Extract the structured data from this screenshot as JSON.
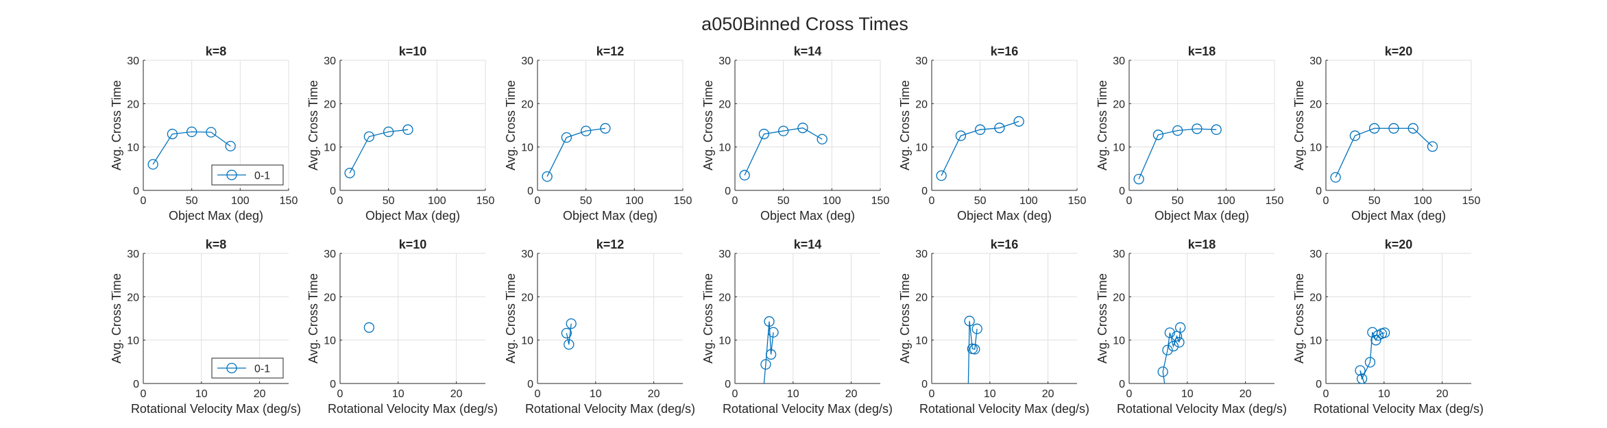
{
  "figure_title": "a050Binned Cross Times",
  "colors": {
    "series": "#0072BD",
    "grid": "#dfdfdf",
    "axis": "#262626",
    "background": "#ffffff"
  },
  "chart_data": [
    {
      "type": "line",
      "title": "k=8",
      "xlabel": "Object Max (deg)",
      "ylabel": "Avg. Cross Time",
      "xlim": [
        0,
        150
      ],
      "ylim": [
        0,
        30
      ],
      "xticks": [
        0,
        50,
        100,
        150
      ],
      "yticks": [
        0,
        10,
        20,
        30
      ],
      "grid": true,
      "legend": "bottom-right",
      "series": [
        {
          "name": "0-1",
          "marker": "circle",
          "x": [
            10,
            30,
            50,
            70,
            90
          ],
          "y": [
            6.0,
            13.0,
            13.5,
            13.4,
            10.2
          ]
        }
      ]
    },
    {
      "type": "line",
      "title": "k=10",
      "xlabel": "Object Max (deg)",
      "ylabel": "Avg. Cross Time",
      "xlim": [
        0,
        150
      ],
      "ylim": [
        0,
        30
      ],
      "xticks": [
        0,
        50,
        100,
        150
      ],
      "yticks": [
        0,
        10,
        20,
        30
      ],
      "grid": true,
      "legend": "",
      "series": [
        {
          "name": "0-1",
          "marker": "circle",
          "x": [
            10,
            30,
            50,
            70
          ],
          "y": [
            4.0,
            12.4,
            13.5,
            14.0
          ]
        }
      ]
    },
    {
      "type": "line",
      "title": "k=12",
      "xlabel": "Object Max (deg)",
      "ylabel": "Avg. Cross Time",
      "xlim": [
        0,
        150
      ],
      "ylim": [
        0,
        30
      ],
      "xticks": [
        0,
        50,
        100,
        150
      ],
      "yticks": [
        0,
        10,
        20,
        30
      ],
      "grid": true,
      "legend": "",
      "series": [
        {
          "name": "0-1",
          "marker": "circle",
          "x": [
            10,
            30,
            50,
            70
          ],
          "y": [
            3.2,
            12.2,
            13.7,
            14.3
          ]
        }
      ]
    },
    {
      "type": "line",
      "title": "k=14",
      "xlabel": "Object Max (deg)",
      "ylabel": "Avg. Cross Time",
      "xlim": [
        0,
        150
      ],
      "ylim": [
        0,
        30
      ],
      "xticks": [
        0,
        50,
        100,
        150
      ],
      "yticks": [
        0,
        10,
        20,
        30
      ],
      "grid": true,
      "legend": "",
      "series": [
        {
          "name": "0-1",
          "marker": "circle",
          "x": [
            10,
            30,
            50,
            70,
            90
          ],
          "y": [
            3.5,
            13.0,
            13.7,
            14.4,
            11.8
          ]
        }
      ]
    },
    {
      "type": "line",
      "title": "k=16",
      "xlabel": "Object Max (deg)",
      "ylabel": "Avg. Cross Time",
      "xlim": [
        0,
        150
      ],
      "ylim": [
        0,
        30
      ],
      "xticks": [
        0,
        50,
        100,
        150
      ],
      "yticks": [
        0,
        10,
        20,
        30
      ],
      "grid": true,
      "legend": "",
      "series": [
        {
          "name": "0-1",
          "marker": "circle",
          "x": [
            10,
            30,
            50,
            70,
            90
          ],
          "y": [
            3.4,
            12.6,
            14.0,
            14.4,
            15.9
          ]
        }
      ]
    },
    {
      "type": "line",
      "title": "k=18",
      "xlabel": "Object Max (deg)",
      "ylabel": "Avg. Cross Time",
      "xlim": [
        0,
        150
      ],
      "ylim": [
        0,
        30
      ],
      "xticks": [
        0,
        50,
        100,
        150
      ],
      "yticks": [
        0,
        10,
        20,
        30
      ],
      "grid": true,
      "legend": "",
      "series": [
        {
          "name": "0-1",
          "marker": "circle",
          "x": [
            10,
            30,
            50,
            70,
            90
          ],
          "y": [
            2.6,
            12.8,
            13.8,
            14.2,
            14.0
          ]
        }
      ]
    },
    {
      "type": "line",
      "title": "k=20",
      "xlabel": "Object Max (deg)",
      "ylabel": "Avg. Cross Time",
      "xlim": [
        0,
        150
      ],
      "ylim": [
        0,
        30
      ],
      "xticks": [
        0,
        50,
        100,
        150
      ],
      "yticks": [
        0,
        10,
        20,
        30
      ],
      "grid": true,
      "legend": "",
      "series": [
        {
          "name": "0-1",
          "marker": "circle",
          "x": [
            10,
            30,
            50,
            70,
            90,
            110
          ],
          "y": [
            3.0,
            12.6,
            14.3,
            14.3,
            14.3,
            10.1
          ]
        }
      ]
    },
    {
      "type": "line",
      "title": "k=8",
      "xlabel": "Rotational Velocity Max (deg/s)",
      "ylabel": "Avg. Cross Time",
      "xlim": [
        0,
        25
      ],
      "ylim": [
        0,
        30
      ],
      "xticks": [
        0,
        10,
        20
      ],
      "yticks": [
        0,
        10,
        20,
        30
      ],
      "grid": true,
      "legend": "bottom-right",
      "series": [
        {
          "name": "0-1",
          "marker": "circle",
          "x": [],
          "y": []
        }
      ]
    },
    {
      "type": "line",
      "title": "k=10",
      "xlabel": "Rotational Velocity Max (deg/s)",
      "ylabel": "Avg. Cross Time",
      "xlim": [
        0,
        25
      ],
      "ylim": [
        0,
        30
      ],
      "xticks": [
        0,
        10,
        20
      ],
      "yticks": [
        0,
        10,
        20,
        30
      ],
      "grid": true,
      "legend": "",
      "series": [
        {
          "name": "0-1",
          "marker": "circle",
          "x": [
            5.0
          ],
          "y": [
            12.9
          ]
        }
      ]
    },
    {
      "type": "line",
      "title": "k=12",
      "xlabel": "Rotational Velocity Max (deg/s)",
      "ylabel": "Avg. Cross Time",
      "xlim": [
        0,
        25
      ],
      "ylim": [
        0,
        30
      ],
      "xticks": [
        0,
        10,
        20
      ],
      "yticks": [
        0,
        10,
        20,
        30
      ],
      "grid": true,
      "legend": "",
      "series": [
        {
          "name": "0-1",
          "marker": "circle",
          "x": [
            5.0,
            5.4,
            5.8
          ],
          "y": [
            11.6,
            9.0,
            13.8
          ]
        }
      ]
    },
    {
      "type": "line",
      "title": "k=14",
      "xlabel": "Rotational Velocity Max (deg/s)",
      "ylabel": "Avg. Cross Time",
      "xlim": [
        0,
        25
      ],
      "ylim": [
        0,
        30
      ],
      "xticks": [
        0,
        10,
        20
      ],
      "yticks": [
        0,
        10,
        20,
        30
      ],
      "grid": true,
      "legend": "",
      "series": [
        {
          "name": "0-1",
          "marker": "circle",
          "x": [
            5.0,
            5.3,
            5.9,
            6.2,
            6.6
          ],
          "y": [
            0.0,
            4.4,
            14.3,
            6.7,
            11.8
          ]
        }
      ]
    },
    {
      "type": "line",
      "title": "k=16",
      "xlabel": "Rotational Velocity Max (deg/s)",
      "ylabel": "Avg. Cross Time",
      "xlim": [
        0,
        25
      ],
      "ylim": [
        0,
        30
      ],
      "xticks": [
        0,
        10,
        20
      ],
      "yticks": [
        0,
        10,
        20,
        30
      ],
      "grid": true,
      "legend": "",
      "series": [
        {
          "name": "0-1",
          "marker": "circle",
          "x": [
            6.3,
            6.5,
            7.0,
            7.4,
            7.8
          ],
          "y": [
            0.0,
            14.4,
            8.0,
            7.9,
            12.6
          ]
        }
      ]
    },
    {
      "type": "line",
      "title": "k=18",
      "xlabel": "Rotational Velocity Max (deg/s)",
      "ylabel": "Avg. Cross Time",
      "xlim": [
        0,
        25
      ],
      "ylim": [
        0,
        30
      ],
      "xticks": [
        0,
        10,
        20
      ],
      "yticks": [
        0,
        10,
        20,
        30
      ],
      "grid": true,
      "legend": "",
      "series": [
        {
          "name": "0-1",
          "marker": "circle",
          "x": [
            6.1,
            5.8,
            6.6,
            7.0,
            7.6,
            8.2,
            8.6,
            8.8
          ],
          "y": [
            0.0,
            2.7,
            7.7,
            11.7,
            8.6,
            10.9,
            9.5,
            12.9
          ]
        }
      ]
    },
    {
      "type": "line",
      "title": "k=20",
      "xlabel": "Rotational Velocity Max (deg/s)",
      "ylabel": "Avg. Cross Time",
      "xlim": [
        0,
        25
      ],
      "ylim": [
        0,
        30
      ],
      "xticks": [
        0,
        10,
        20
      ],
      "yticks": [
        0,
        10,
        20,
        30
      ],
      "grid": true,
      "legend": "",
      "series": [
        {
          "name": "0-1",
          "marker": "circle",
          "x": [
            6.6,
            5.9,
            6.2,
            7.6,
            8.0,
            8.6,
            9.0,
            9.6,
            10.1
          ],
          "y": [
            0.0,
            3.0,
            1.1,
            4.9,
            11.8,
            10.0,
            11.1,
            11.5,
            11.7
          ]
        }
      ]
    }
  ]
}
